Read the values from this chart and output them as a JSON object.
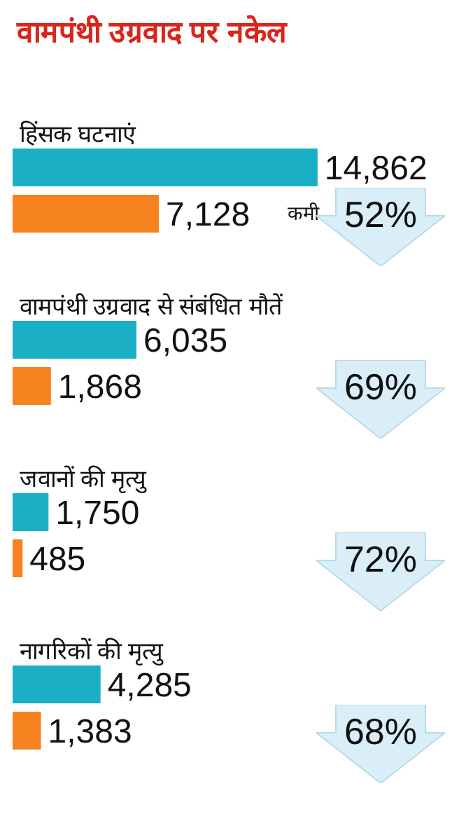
{
  "chart_data": {
    "type": "bar",
    "orientation": "horizontal",
    "title": "वामपंथी उग्रवाद पर नकेल",
    "categories": [
      "हिंसक घटनाएं",
      "वामपंथी उग्रवाद से संबंधित मौतें",
      "जवानों की मृत्यु",
      "नागरिकों की मृत्यु"
    ],
    "series": [
      {
        "color": "#1aafc4",
        "values": [
          14862,
          6035,
          1750,
          4285
        ],
        "value_labels": [
          "14,862",
          "6,035",
          "1,750",
          "4,285"
        ]
      },
      {
        "color": "#f5821f",
        "values": [
          7128,
          1868,
          485,
          1383
        ],
        "value_labels": [
          "7,128",
          "1,868",
          "485",
          "1,383"
        ]
      }
    ],
    "tick_labels": "y",
    "annotations": [
      "कमी",
      "52%",
      "69%",
      "72%",
      "68%"
    ]
  }
}
